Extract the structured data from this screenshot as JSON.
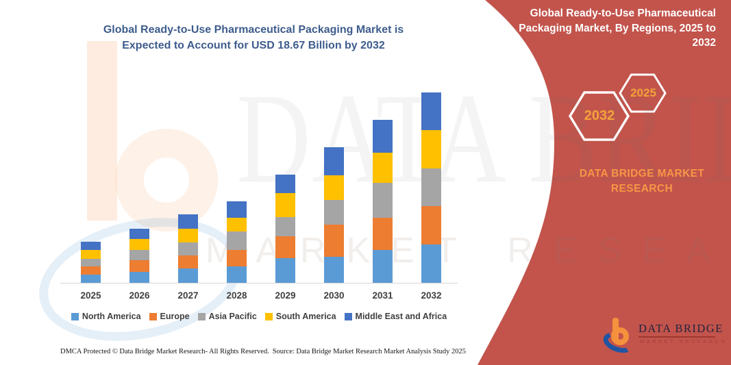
{
  "main_title": {
    "line1": "Global Ready-to-Use Pharmaceutical Packaging Market is",
    "line2": "Expected to Account for USD 18.67 Billion by 2032",
    "color": "#3d5c8c"
  },
  "chart_data": {
    "type": "bar",
    "stacked": true,
    "title": "Global Ready-to-Use Pharmaceutical Packaging Market is Expected to Account for USD 18.67 Billion by 2032",
    "unit": "USD Billion",
    "categories": [
      "2025",
      "2026",
      "2027",
      "2028",
      "2029",
      "2030",
      "2031",
      "2032"
    ],
    "series": [
      {
        "name": "North America",
        "color": "#5b9bd5",
        "values": [
          0.83,
          1.08,
          1.39,
          1.61,
          2.42,
          2.58,
          3.2,
          3.77
        ]
      },
      {
        "name": "Europe",
        "color": "#ed7d31",
        "values": [
          0.79,
          1.12,
          1.3,
          1.61,
          2.13,
          3.14,
          3.19,
          3.74
        ]
      },
      {
        "name": "Asia Pacific",
        "color": "#a5a5a5",
        "values": [
          0.72,
          1.01,
          1.28,
          1.8,
          1.9,
          2.42,
          3.43,
          3.73
        ]
      },
      {
        "name": "South America",
        "color": "#ffc000",
        "values": [
          0.89,
          1.08,
          1.35,
          1.37,
          2.35,
          2.42,
          2.96,
          3.74
        ]
      },
      {
        "name": "Middle East and Africa",
        "color": "#4472c4",
        "values": [
          0.81,
          1.01,
          1.41,
          1.61,
          1.84,
          2.76,
          3.2,
          3.7
        ]
      }
    ],
    "totals": [
      4.04,
      5.29,
      6.73,
      8.0,
      10.65,
      13.32,
      15.98,
      18.67
    ],
    "ylim": [
      0,
      18.67
    ],
    "gridlines": false,
    "y_axis_visible": false,
    "legend_position": "bottom",
    "axis_label_color": "#404040"
  },
  "sidebar": {
    "bg_color": "#c2544c",
    "title": "Global Ready-to-Use Pharmaceutical Packaging Market, By Regions, 2025 to 2032",
    "hexagons": [
      {
        "label": "2032"
      },
      {
        "label": "2025"
      }
    ],
    "hex_label_color": "#f2a33c",
    "brand_line1": "DATA BRIDGE MARKET",
    "brand_line2": "RESEARCH",
    "brand_color": "#f79646"
  },
  "watermark": {
    "line1": "DATA BRIDGE",
    "line2": "MARKET RESEARCH"
  },
  "logo": {
    "name_line": "DATA BRIDGE",
    "sub_line": "MARKET RESEARCH"
  },
  "footer": {
    "dmca": "DMCA Protected © Data Bridge Market Research-  All Rights Reserved.",
    "source": "Source: Data Bridge Market Research  Market Analysis Study 2025"
  }
}
